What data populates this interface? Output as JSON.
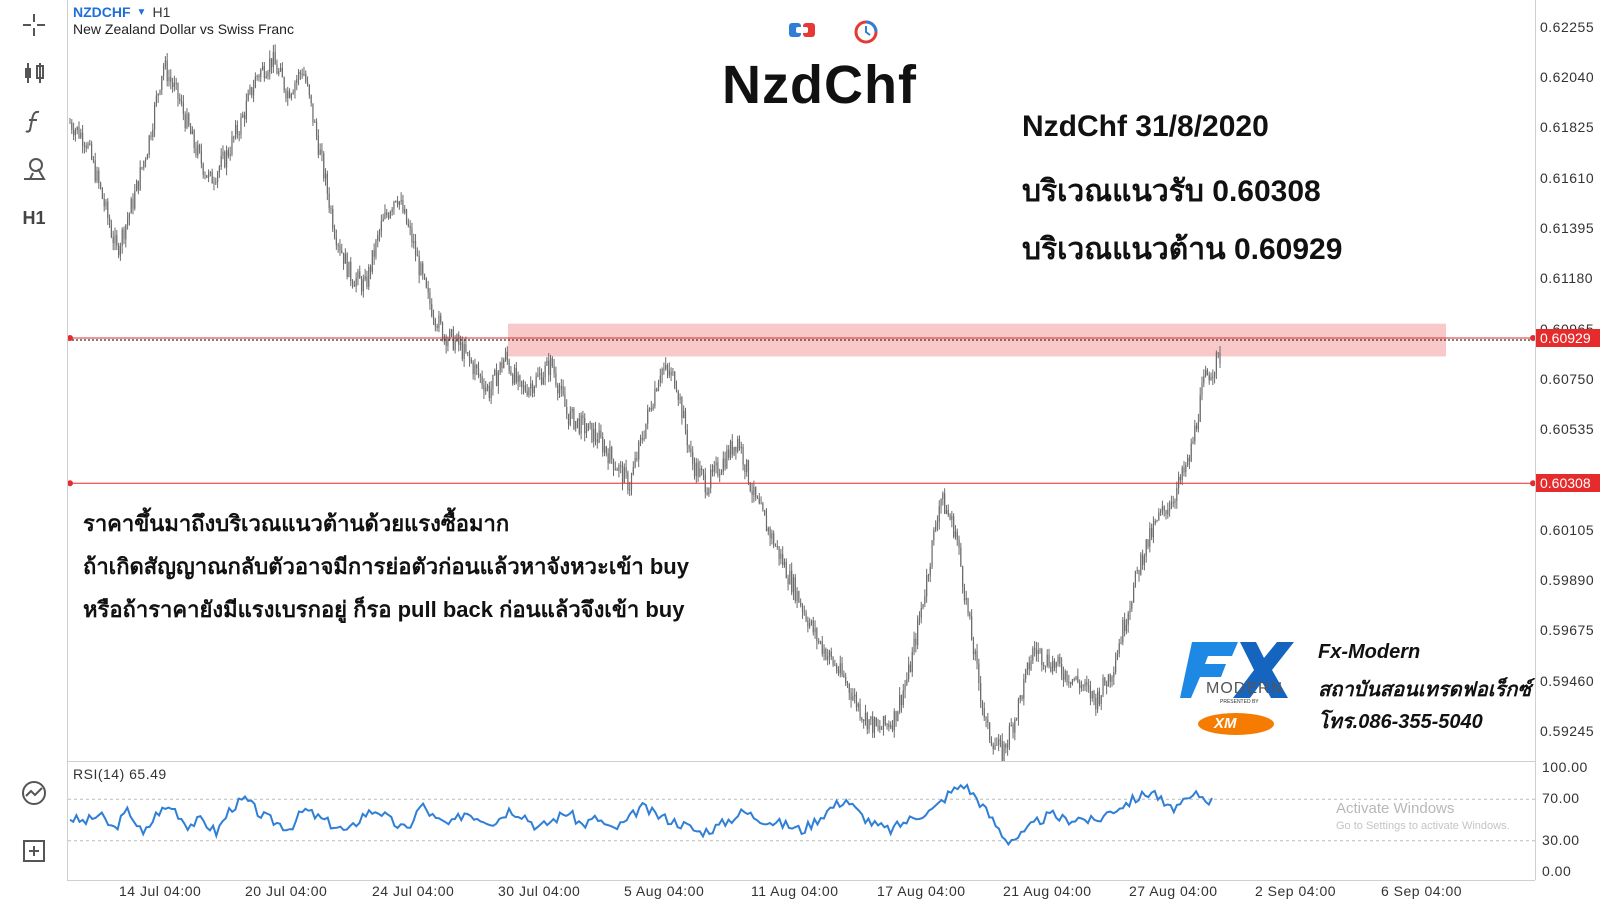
{
  "symbol": {
    "name": "NZDCHF",
    "timeframe": "H1",
    "description": "New Zealand Dollar vs Swiss Franc"
  },
  "toolbar": {
    "timeframe_label": "H1",
    "icons": [
      "crosshair-icon",
      "candlestick-icon",
      "function-icon",
      "drawing-tools-icon",
      "timeframe-button",
      "analysis-icon",
      "add-window-icon"
    ]
  },
  "overlay": {
    "title": "NzdChf",
    "date_line": "NzdChf 31/8/2020",
    "support_line": "บริเวณแนวรับ 0.60308",
    "resistance_line": "บริเวณแนวต้าน 0.60929",
    "notes": [
      "ราคาขึ้นมาถึงบริเวณแนวต้านด้วยแรงซื้อมาก",
      "ถ้าเกิดสัญญาณกลับตัวอาจมีการย่อตัวก่อนแล้วหาจังหวะเข้า buy",
      "หรือถ้าราคายังมีแรงเบรกอยู่ ก็รอ pull back ก่อนแล้วจึงเข้า buy"
    ]
  },
  "brand": {
    "logo_text": "FX",
    "logo_sub": "MODERN",
    "presented_by": "PRESENTED BY",
    "xm_text": "XM",
    "name": "Fx-Modern",
    "tagline": "สถาบันสอนเทรดฟอเร็กซ์",
    "phone": "โทร.086-355-5040"
  },
  "price_axis": {
    "labels": [
      "0.62255",
      "0.62040",
      "0.61825",
      "0.61610",
      "0.61395",
      "0.61180",
      "0.60965",
      "0.60750",
      "0.60535",
      "0.60320",
      "0.60105",
      "0.59890",
      "0.59675",
      "0.59460",
      "0.59245"
    ],
    "resistance_tag": "0.60929",
    "support_tag": "0.60308"
  },
  "rsi": {
    "label": "RSI(14) 65.49",
    "axis_labels": [
      "100.00",
      "70.00",
      "30.00",
      "0.00"
    ]
  },
  "time_axis": {
    "labels": [
      "14 Jul 04:00",
      "20 Jul 04:00",
      "24 Jul 04:00",
      "30 Jul 04:00",
      "5 Aug 04:00",
      "11 Aug 04:00",
      "17 Aug 04:00",
      "21 Aug 04:00",
      "27 Aug 04:00",
      "2 Sep 04:00",
      "6 Sep 04:00"
    ]
  },
  "watermark": {
    "line1": "Activate Windows",
    "line2": "Go to Settings to activate Windows."
  },
  "colors": {
    "line_color": "#e52b2b",
    "zone_color": "#f7b5b5",
    "rsi_color": "#2f7fd6",
    "candle_color": "#6b6b6b",
    "symbol_color": "#1e6fd8"
  },
  "chart_data": {
    "type": "line",
    "price_path": [
      [
        0,
        0.6185
      ],
      [
        3,
        0.6178
      ],
      [
        6,
        0.6155
      ],
      [
        9,
        0.613
      ],
      [
        12,
        0.615
      ],
      [
        15,
        0.6175
      ],
      [
        18,
        0.621
      ],
      [
        21,
        0.6195
      ],
      [
        24,
        0.6175
      ],
      [
        27,
        0.616
      ],
      [
        30,
        0.617
      ],
      [
        33,
        0.6185
      ],
      [
        36,
        0.6205
      ],
      [
        39,
        0.6212
      ],
      [
        42,
        0.6198
      ],
      [
        45,
        0.6208
      ],
      [
        48,
        0.6175
      ],
      [
        51,
        0.614
      ],
      [
        54,
        0.612
      ],
      [
        57,
        0.6115
      ],
      [
        60,
        0.614
      ],
      [
        63,
        0.6155
      ],
      [
        66,
        0.6135
      ],
      [
        69,
        0.611
      ],
      [
        72,
        0.6095
      ],
      [
        75,
        0.609
      ],
      [
        78,
        0.608
      ],
      [
        81,
        0.607
      ],
      [
        84,
        0.6085
      ],
      [
        87,
        0.607
      ],
      [
        90,
        0.6075
      ],
      [
        93,
        0.6082
      ],
      [
        96,
        0.606
      ],
      [
        99,
        0.6055
      ],
      [
        102,
        0.605
      ],
      [
        105,
        0.604
      ],
      [
        108,
        0.603
      ],
      [
        111,
        0.6055
      ],
      [
        114,
        0.608
      ],
      [
        117,
        0.6075
      ],
      [
        120,
        0.604
      ],
      [
        123,
        0.603
      ],
      [
        126,
        0.604
      ],
      [
        129,
        0.605
      ],
      [
        132,
        0.6025
      ],
      [
        135,
        0.601
      ],
      [
        138,
        0.5995
      ],
      [
        141,
        0.598
      ],
      [
        144,
        0.5965
      ],
      [
        147,
        0.5955
      ],
      [
        150,
        0.5945
      ],
      [
        153,
        0.5932
      ],
      [
        156,
        0.5925
      ],
      [
        159,
        0.593
      ],
      [
        162,
        0.595
      ],
      [
        165,
        0.5985
      ],
      [
        168,
        0.6025
      ],
      [
        171,
        0.601
      ],
      [
        174,
        0.5965
      ],
      [
        177,
        0.5925
      ],
      [
        180,
        0.5915
      ],
      [
        183,
        0.5935
      ],
      [
        186,
        0.596
      ],
      [
        189,
        0.5955
      ],
      [
        192,
        0.595
      ],
      [
        195,
        0.5945
      ],
      [
        198,
        0.5938
      ],
      [
        201,
        0.595
      ],
      [
        204,
        0.5975
      ],
      [
        207,
        0.6
      ],
      [
        210,
        0.6015
      ],
      [
        213,
        0.6025
      ],
      [
        216,
        0.604
      ],
      [
        219,
        0.6075
      ],
      [
        222,
        0.6085
      ]
    ],
    "support": 0.60308,
    "resistance": 0.60929,
    "resistance_zone": [
      0.6085,
      0.6099
    ],
    "ylim": [
      0.5915,
      0.6234
    ],
    "rsi_values": [
      52,
      48,
      55,
      41,
      60,
      35,
      58,
      63,
      45,
      50,
      38,
      62,
      70,
      55,
      48,
      42,
      60,
      52,
      45,
      38,
      55,
      60,
      48,
      40,
      65,
      50,
      45,
      58,
      52,
      48,
      60,
      55,
      42,
      50,
      58,
      45,
      52,
      40,
      48,
      63,
      55,
      50,
      45,
      38,
      42,
      50,
      58,
      52,
      48,
      45,
      40,
      50,
      62,
      70,
      55,
      45,
      40,
      48,
      55,
      60,
      75,
      85,
      70,
      50,
      30,
      35,
      48,
      55,
      50,
      52,
      48,
      58,
      65,
      72,
      78,
      60,
      65,
      75,
      68
    ],
    "rsi_ylim": [
      0,
      100
    ]
  }
}
